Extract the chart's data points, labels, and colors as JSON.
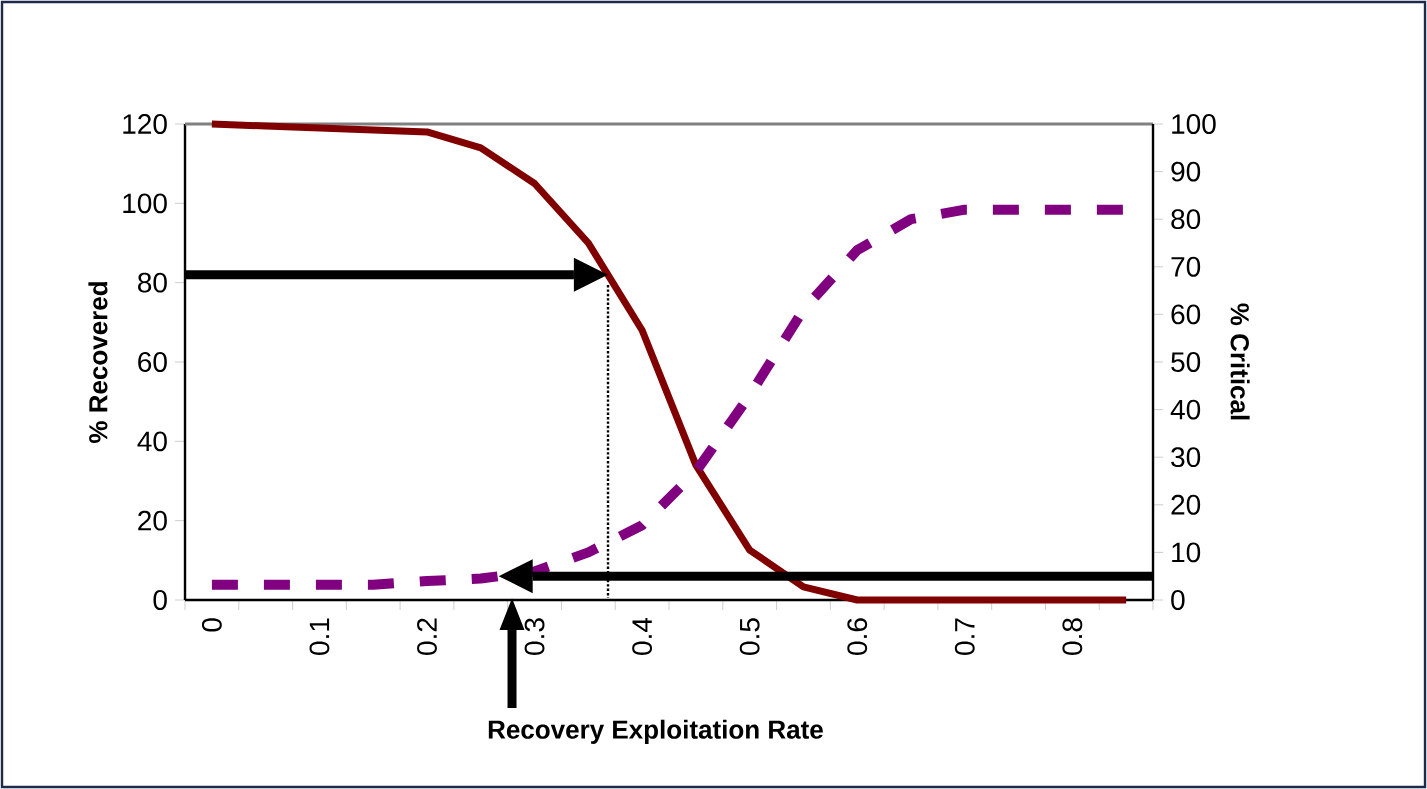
{
  "chart_data": {
    "type": "line",
    "xlabel": "Recovery Exploitation Rate",
    "ylabel": "% Recovered",
    "y2label": "% Critical",
    "categories": [
      "0",
      null,
      "0.1",
      null,
      "0.2",
      null,
      "0.3",
      null,
      "0.4",
      null,
      "0.5",
      null,
      "0.6",
      null,
      "0.7",
      null,
      "0.8",
      null
    ],
    "ylim": [
      0,
      120
    ],
    "yticks": [
      0,
      20,
      40,
      60,
      80,
      100,
      120
    ],
    "y2lim": [
      0,
      100
    ],
    "y2ticks": [
      0,
      10,
      20,
      30,
      40,
      50,
      60,
      70,
      80,
      90,
      100
    ],
    "ref_lines": [
      {
        "axis": "y",
        "value": 82,
        "color": "#000000",
        "line_style": "solid"
      },
      {
        "axis": "y2",
        "value": 5,
        "color": "#000000",
        "line_style": "solid"
      }
    ],
    "series": [
      {
        "color": "#800000",
        "line_style": "solid",
        "values": [
          120,
          119.5,
          119,
          118.5,
          118,
          114,
          105,
          90,
          68,
          34,
          12.6,
          3.3,
          0,
          0,
          0,
          0,
          0,
          0
        ]
      },
      {
        "color": "#800080",
        "line_style": "dashed",
        "axis": "y2",
        "values": [
          3.2,
          3.2,
          3.2,
          3.2,
          4,
          4.5,
          6,
          10,
          15.7,
          27,
          43,
          61,
          73.5,
          80,
          82,
          82,
          82,
          82
        ]
      }
    ]
  }
}
